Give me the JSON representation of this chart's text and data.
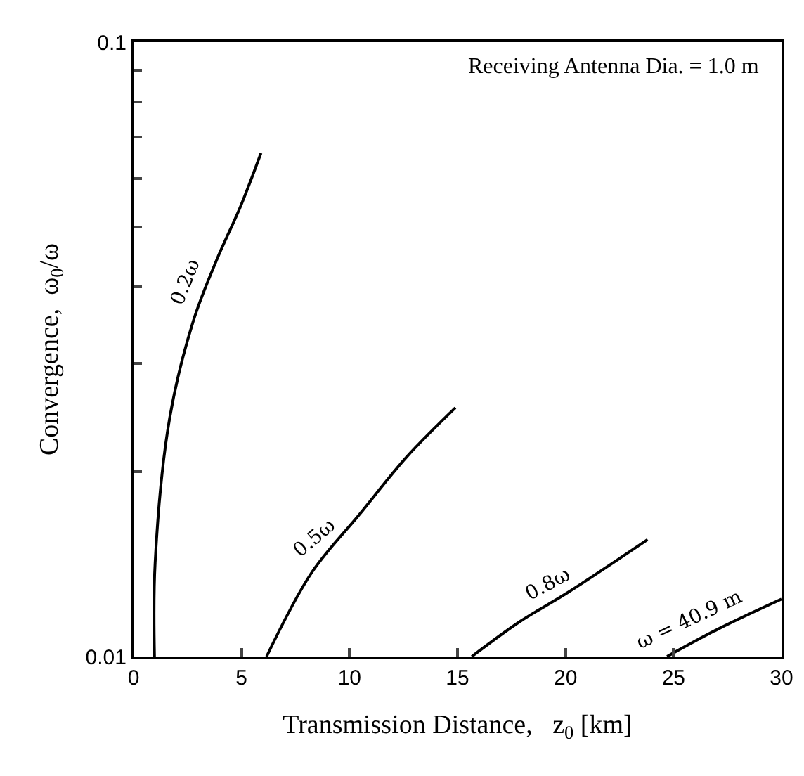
{
  "chart_data": {
    "type": "line",
    "xlabel": "Transmission Distance,   z$_{0}$ [km]",
    "ylabel": "Convergence,  ω$_{0}$/ω",
    "log": "y",
    "grid": false,
    "legend": false,
    "marker": "none",
    "line_style": "solid",
    "xlim": [
      0,
      30
    ],
    "xticks": [
      0,
      5,
      10,
      15,
      20,
      25,
      30
    ],
    "ylim": [
      0.01,
      0.1
    ],
    "yticks": [
      0.01,
      {
        "value": 0.02,
        "label": null
      },
      {
        "value": 0.03,
        "label": null
      },
      {
        "value": 0.04,
        "label": null
      },
      {
        "value": 0.05,
        "label": null
      },
      {
        "value": 0.06,
        "label": null
      },
      {
        "value": 0.07,
        "label": null
      },
      {
        "value": 0.08,
        "label": null
      },
      {
        "value": 0.09,
        "label": null
      },
      0.1
    ],
    "series": [
      {
        "name": "0.2ω",
        "color": "#000000",
        "x": [
          0.97,
          1.0,
          1.67,
          2.76,
          3.86,
          4.96,
          5.9
        ],
        "values": [
          0.01,
          0.0142,
          0.0244,
          0.0351,
          0.0443,
          0.0541,
          0.066
        ]
      },
      {
        "name": "0.5ω",
        "color": "#000000",
        "x": [
          6.16,
          8.25,
          10.44,
          12.63,
          14.9
        ],
        "values": [
          0.01,
          0.0137,
          0.017,
          0.0211,
          0.0254
        ]
      },
      {
        "name": "0.8ω",
        "color": "#000000",
        "x": [
          15.66,
          17.89,
          20.09,
          23.8
        ],
        "values": [
          0.01,
          0.0114,
          0.0127,
          0.0155
        ]
      },
      {
        "name": "ω = 40.9 m",
        "color": "#000000",
        "x": [
          24.7,
          27.1,
          30
        ],
        "values": [
          0.01,
          0.0111,
          0.0124
        ]
      }
    ],
    "annotations": [
      "Receiving Antenna Dia. = 1.0 m"
    ]
  }
}
